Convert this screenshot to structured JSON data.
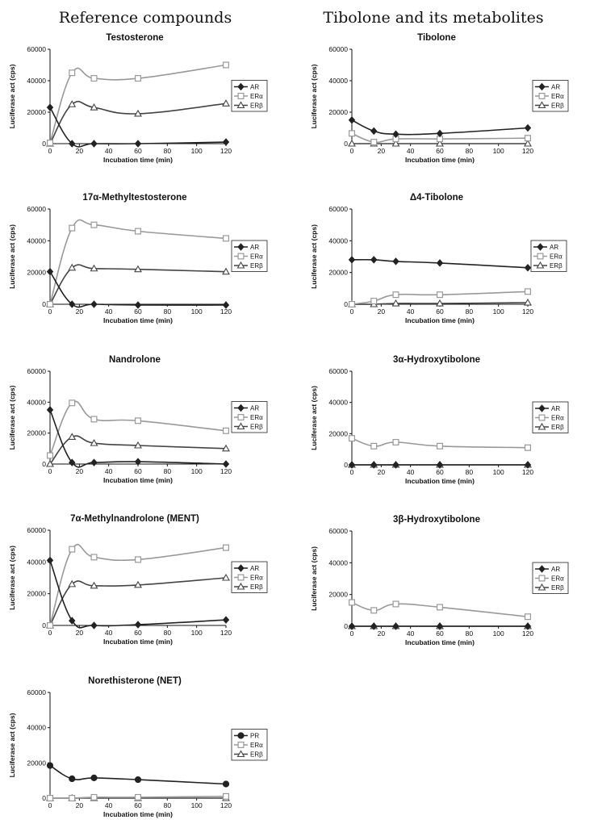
{
  "column_headers": {
    "left": "Reference compounds",
    "right": "Tibolone and its metabolites"
  },
  "series_styles": {
    "AR": {
      "color": "#222222",
      "marker": "diamond"
    },
    "PR": {
      "color": "#222222",
      "marker": "circle"
    },
    "ERα": {
      "color": "#999999",
      "marker": "square"
    },
    "ERβ": {
      "color": "#444444",
      "marker": "triangle"
    }
  },
  "chart_data": [
    {
      "type": "line",
      "title": "Testosterone",
      "xlabel": "Incubation time (min)",
      "ylabel": "Luciferase act (cps)",
      "xlim": [
        0,
        120
      ],
      "ylim": [
        0,
        60000
      ],
      "xticks": [
        "0",
        "20",
        "40",
        "60",
        "80",
        "100",
        "120"
      ],
      "yticks": [
        "0",
        "20000",
        "40000",
        "60000"
      ],
      "x": [
        0,
        15,
        30,
        60,
        120
      ],
      "series": [
        {
          "name": "AR",
          "values": [
            23000,
            0,
            0,
            0,
            1000
          ]
        },
        {
          "name": "ERα",
          "values": [
            500,
            45000,
            41500,
            41500,
            50000
          ]
        },
        {
          "name": "ERβ",
          "values": [
            0,
            25000,
            23000,
            19000,
            25500
          ]
        }
      ]
    },
    {
      "type": "line",
      "title": "Tibolone",
      "xlabel": "Incubation time (min)",
      "ylabel": "Luciferase act (cps)",
      "xlim": [
        0,
        120
      ],
      "ylim": [
        0,
        60000
      ],
      "xticks": [
        "0",
        "20",
        "40",
        "60",
        "80",
        "100",
        "120"
      ],
      "yticks": [
        "0",
        "20000",
        "40000",
        "60000"
      ],
      "x": [
        0,
        15,
        30,
        60,
        120
      ],
      "series": [
        {
          "name": "AR",
          "values": [
            15000,
            8000,
            6000,
            6500,
            10000
          ]
        },
        {
          "name": "ERα",
          "values": [
            6500,
            1000,
            3000,
            3000,
            3500
          ]
        },
        {
          "name": "ERβ",
          "values": [
            0,
            0,
            0,
            0,
            0
          ]
        }
      ]
    },
    {
      "type": "line",
      "title": "17α-Methyltestosterone",
      "xlabel": "Incubation time (min)",
      "ylabel": "Luciferase act (cps)",
      "xlim": [
        0,
        120
      ],
      "ylim": [
        0,
        60000
      ],
      "xticks": [
        "0",
        "20",
        "40",
        "60",
        "80",
        "100",
        "120"
      ],
      "yticks": [
        "0",
        "20000",
        "40000",
        "60000"
      ],
      "x": [
        0,
        15,
        30,
        60,
        120
      ],
      "series": [
        {
          "name": "AR",
          "values": [
            20500,
            0,
            0,
            -500,
            -500
          ]
        },
        {
          "name": "ERα",
          "values": [
            0,
            48000,
            50000,
            46000,
            41500
          ]
        },
        {
          "name": "ERβ",
          "values": [
            0,
            23000,
            22500,
            22000,
            20500
          ]
        }
      ]
    },
    {
      "type": "line",
      "title": "Δ4-Tibolone",
      "xlabel": "Incubation time (min)",
      "ylabel": "Luciferase act (cps)",
      "xlim": [
        0,
        120
      ],
      "ylim": [
        0,
        60000
      ],
      "xticks": [
        "0",
        "20",
        "40",
        "60",
        "80",
        "100",
        "120"
      ],
      "yticks": [
        "0",
        "20000",
        "40000",
        "60000"
      ],
      "x": [
        0,
        15,
        30,
        60,
        120
      ],
      "series": [
        {
          "name": "AR",
          "values": [
            28000,
            28000,
            27000,
            26000,
            23000
          ]
        },
        {
          "name": "ERα",
          "values": [
            0,
            2000,
            6000,
            6000,
            8000
          ]
        },
        {
          "name": "ERβ",
          "values": [
            0,
            0,
            500,
            500,
            1000
          ]
        }
      ]
    },
    {
      "type": "line",
      "title": "Nandrolone",
      "xlabel": "Incubation time (min)",
      "ylabel": "Luciferase act (cps)",
      "xlim": [
        0,
        120
      ],
      "ylim": [
        0,
        60000
      ],
      "xticks": [
        "0",
        "20",
        "40",
        "60",
        "80",
        "100",
        "120"
      ],
      "yticks": [
        "0",
        "20000",
        "40000",
        "60000"
      ],
      "x": [
        0,
        15,
        30,
        60,
        120
      ],
      "series": [
        {
          "name": "AR",
          "values": [
            35000,
            1000,
            1000,
            1500,
            0
          ]
        },
        {
          "name": "ERα",
          "values": [
            5500,
            39500,
            29000,
            28000,
            21500
          ]
        },
        {
          "name": "ERβ",
          "values": [
            0,
            17500,
            13500,
            12000,
            10000
          ]
        }
      ]
    },
    {
      "type": "line",
      "title": "3α-Hydroxytibolone",
      "xlabel": "Incubation time (min)",
      "ylabel": "Luciferase act (cps)",
      "xlim": [
        0,
        120
      ],
      "ylim": [
        0,
        60000
      ],
      "xticks": [
        "0",
        "20",
        "40",
        "60",
        "80",
        "100",
        "120"
      ],
      "yticks": [
        "0",
        "20000",
        "40000",
        "60000"
      ],
      "x": [
        0,
        15,
        30,
        60,
        120
      ],
      "series": [
        {
          "name": "AR",
          "values": [
            0,
            0,
            0,
            0,
            0
          ]
        },
        {
          "name": "ERα",
          "values": [
            17000,
            12000,
            14500,
            12000,
            11000
          ]
        },
        {
          "name": "ERβ",
          "values": [
            0,
            0,
            0,
            0,
            0
          ]
        }
      ]
    },
    {
      "type": "line",
      "title": "7α-Methylnandrolone (MENT)",
      "xlabel": "Incubation time (min)",
      "ylabel": "Luciferase act (cps)",
      "xlim": [
        0,
        120
      ],
      "ylim": [
        0,
        60000
      ],
      "xticks": [
        "0",
        "20",
        "40",
        "60",
        "80",
        "100",
        "120"
      ],
      "yticks": [
        "0",
        "20000",
        "40000",
        "60000"
      ],
      "x": [
        0,
        15,
        30,
        60,
        120
      ],
      "series": [
        {
          "name": "AR",
          "values": [
            41000,
            3000,
            0,
            500,
            3500
          ]
        },
        {
          "name": "ERα",
          "values": [
            0,
            48000,
            43000,
            41500,
            49000
          ]
        },
        {
          "name": "ERβ",
          "values": [
            0,
            26000,
            25000,
            25500,
            30000
          ]
        }
      ]
    },
    {
      "type": "line",
      "title": "3β-Hydroxytibolone",
      "xlabel": "Incubation time (min)",
      "ylabel": "Luciferase act (cps)",
      "xlim": [
        0,
        120
      ],
      "ylim": [
        0,
        60000
      ],
      "xticks": [
        "0",
        "20",
        "40",
        "60",
        "80",
        "100",
        "120"
      ],
      "yticks": [
        "0",
        "20000",
        "40000",
        "60000"
      ],
      "x": [
        0,
        15,
        30,
        60,
        120
      ],
      "series": [
        {
          "name": "AR",
          "values": [
            0,
            0,
            0,
            0,
            0
          ]
        },
        {
          "name": "ERα",
          "values": [
            15000,
            10000,
            14000,
            12000,
            6000
          ]
        },
        {
          "name": "ERβ",
          "values": [
            0,
            0,
            0,
            0,
            0
          ]
        }
      ]
    },
    {
      "type": "line",
      "title": "Norethisterone (NET)",
      "xlabel": "Incubation time (min)",
      "ylabel": "Luciferase act (cps)",
      "xlim": [
        0,
        120
      ],
      "ylim": [
        0,
        60000
      ],
      "xticks": [
        "0",
        "20",
        "40",
        "60",
        "80",
        "100",
        "120"
      ],
      "yticks": [
        "0",
        "20000",
        "40000",
        "60000"
      ],
      "x": [
        0,
        15,
        30,
        60,
        120
      ],
      "series": [
        {
          "name": "PR",
          "values": [
            18500,
            11000,
            11500,
            10500,
            8000
          ]
        },
        {
          "name": "ERα",
          "values": [
            0,
            0,
            500,
            500,
            1000
          ]
        },
        {
          "name": "ERβ",
          "values": [
            0,
            0,
            0,
            0,
            0
          ]
        }
      ]
    }
  ]
}
